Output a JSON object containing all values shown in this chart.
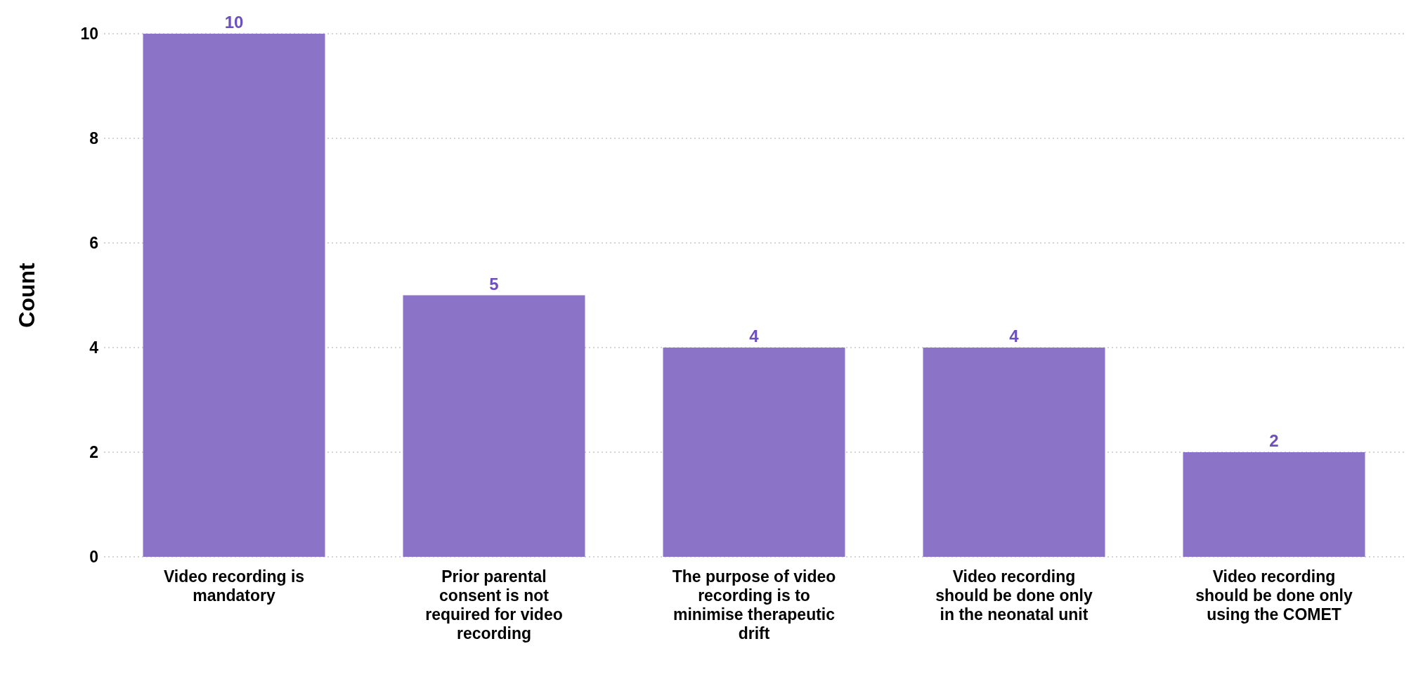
{
  "chart_data": {
    "type": "bar",
    "ylabel": "Count",
    "categories": [
      "Video recording is mandatory",
      "Prior parental consent is not required for video recording",
      "The purpose of video recording is to minimise therapeutic drift",
      "Video recording should be done only in the neonatal unit",
      "Video recording should be done only using the COMET"
    ],
    "values": [
      10,
      5,
      4,
      4,
      2
    ],
    "color": "#8b73c8",
    "ylim": [
      0,
      10
    ],
    "yticks": [
      0,
      2,
      4,
      6,
      8,
      10
    ],
    "grid": "y",
    "data_labels": true,
    "legend": false
  }
}
